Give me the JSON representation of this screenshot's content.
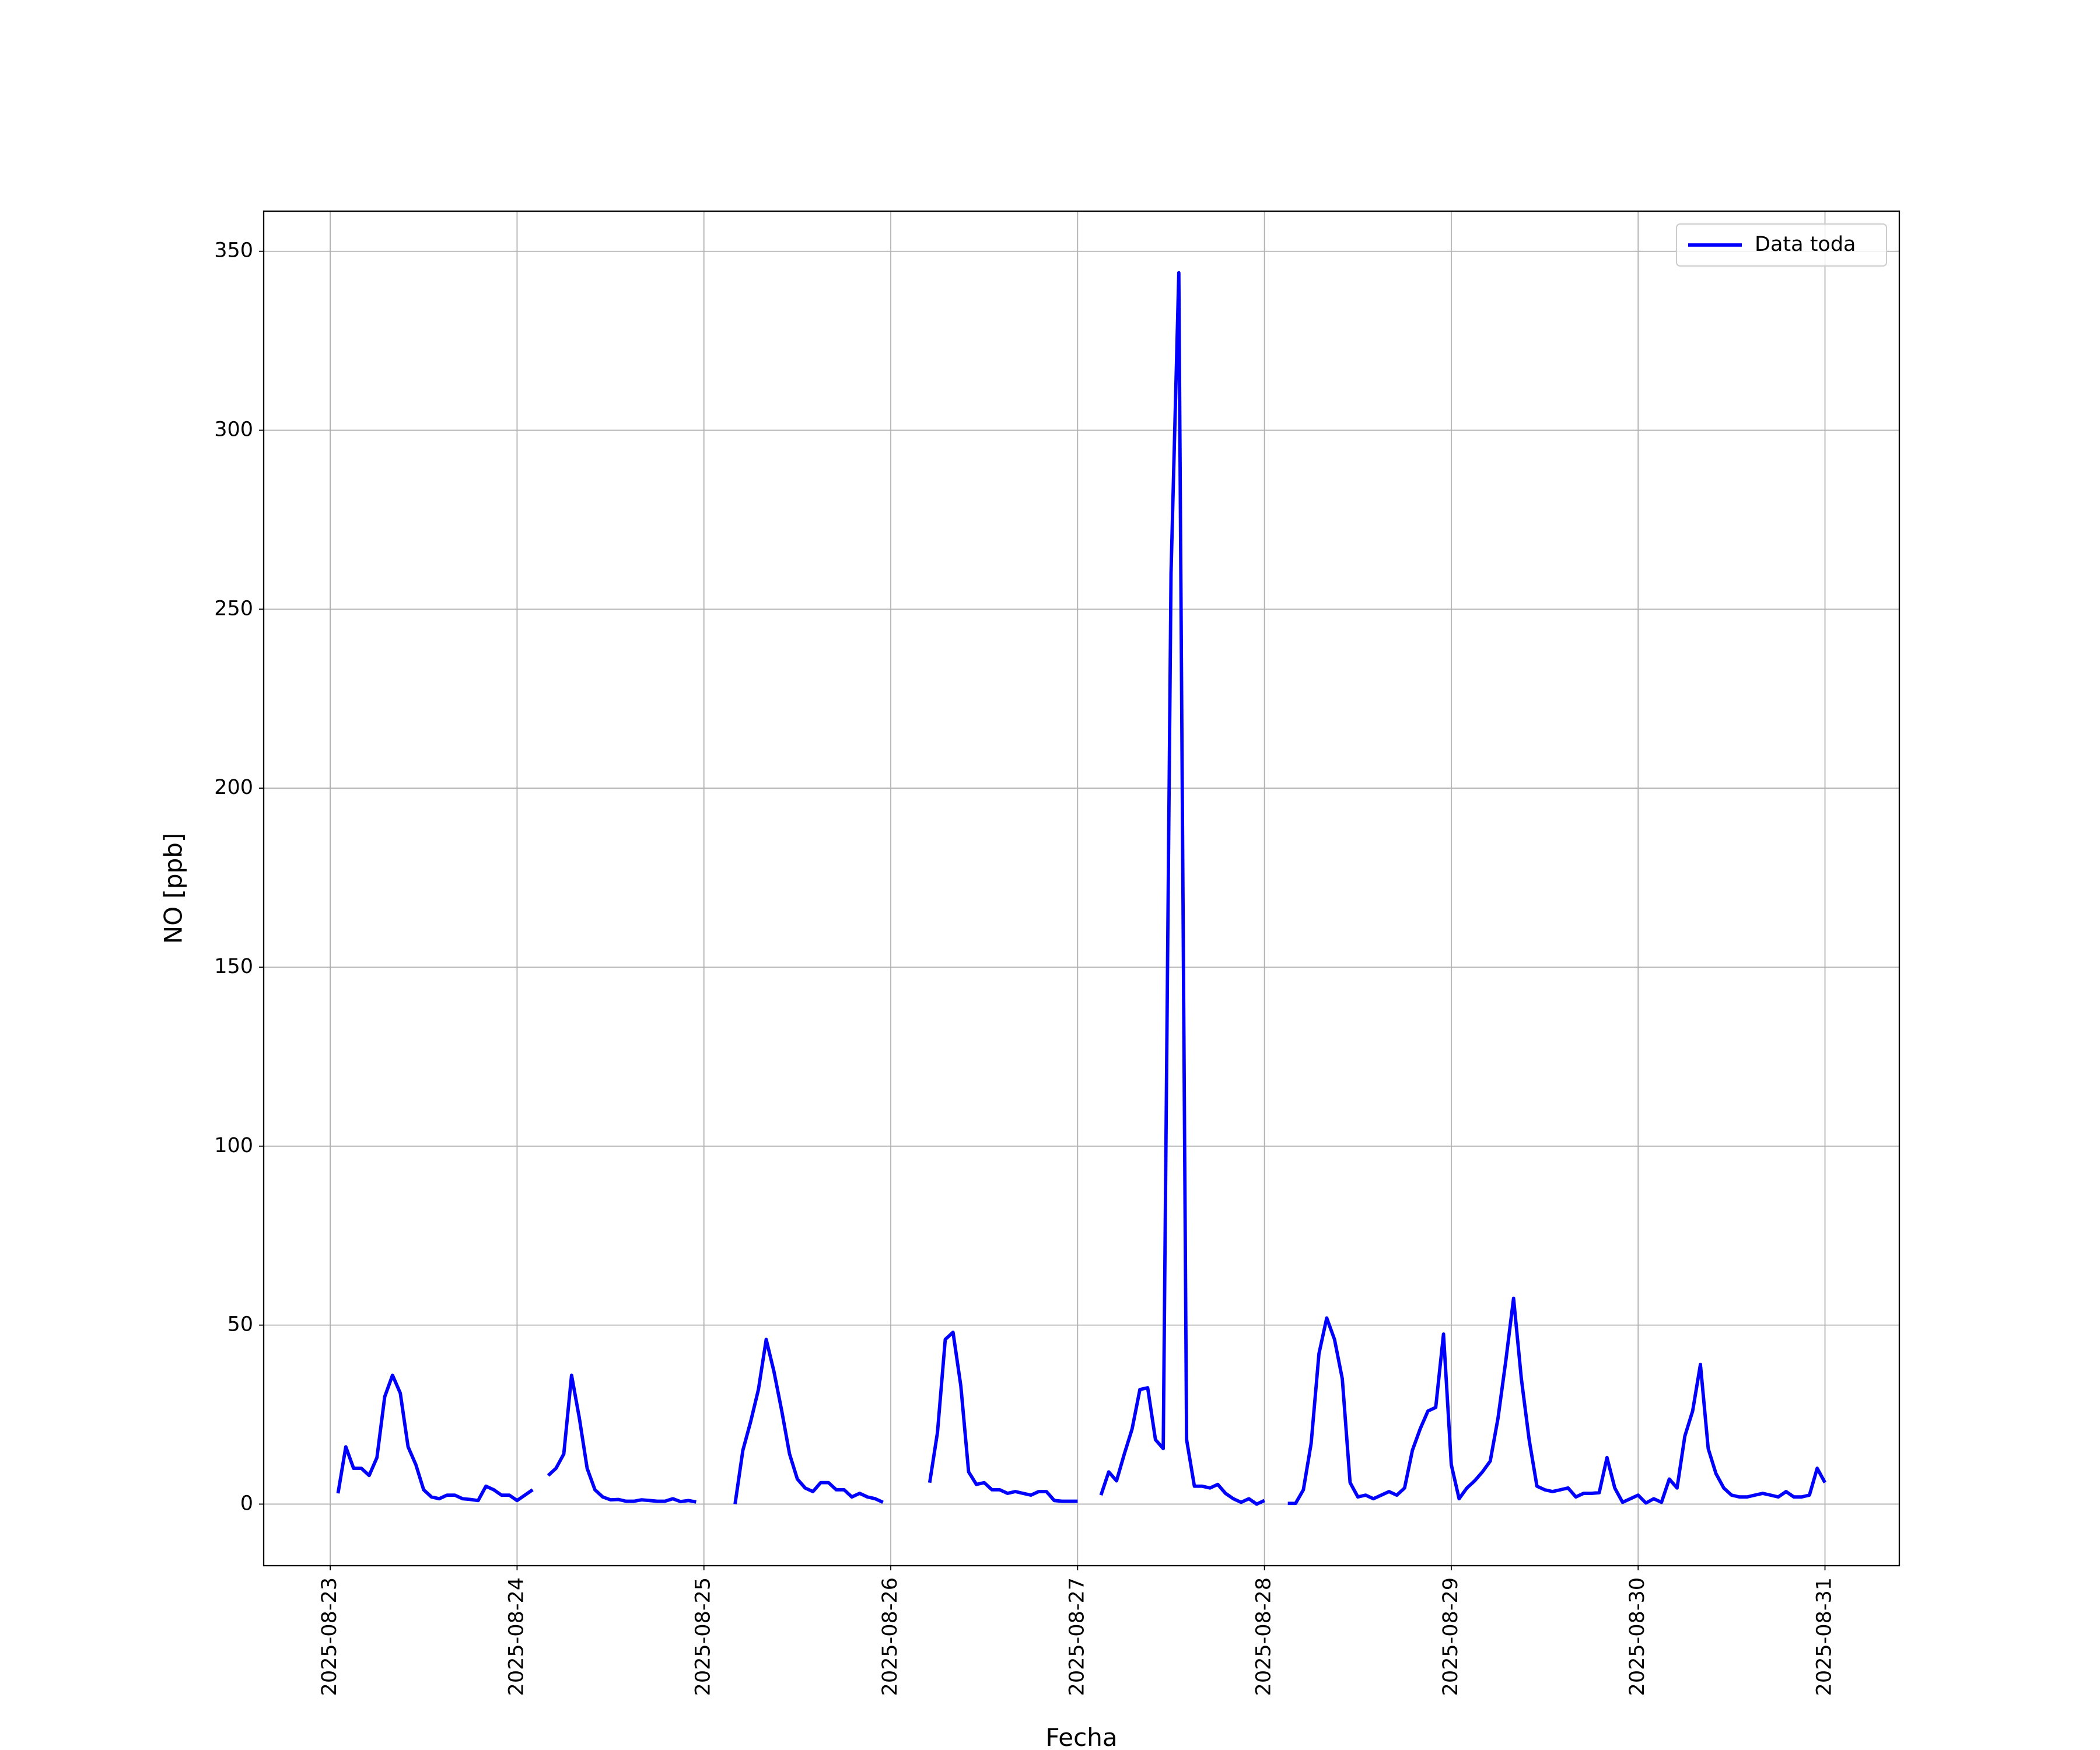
{
  "chart_data": {
    "type": "line",
    "xlabel": "Fecha",
    "ylabel": "NO [ppb]",
    "x": [
      "2025-08-23 01:00",
      "2025-08-23 02:00",
      "2025-08-23 03:00",
      "2025-08-23 04:00",
      "2025-08-23 05:00",
      "2025-08-23 06:00",
      "2025-08-23 07:00",
      "2025-08-23 08:00",
      "2025-08-23 09:00",
      "2025-08-23 10:00",
      "2025-08-23 11:00",
      "2025-08-23 12:00",
      "2025-08-23 13:00",
      "2025-08-23 14:00",
      "2025-08-23 15:00",
      "2025-08-23 16:00",
      "2025-08-23 17:00",
      "2025-08-23 18:00",
      "2025-08-23 19:00",
      "2025-08-23 20:00",
      "2025-08-23 21:00",
      "2025-08-23 22:00",
      "2025-08-23 23:00",
      "2025-08-24 00:00",
      "2025-08-24 01:00",
      "2025-08-24 02:00",
      "2025-08-24 03:00",
      "2025-08-24 04:00",
      "2025-08-24 05:00",
      "2025-08-24 06:00",
      "2025-08-24 07:00",
      "2025-08-24 08:00",
      "2025-08-24 09:00",
      "2025-08-24 10:00",
      "2025-08-24 11:00",
      "2025-08-24 12:00",
      "2025-08-24 13:00",
      "2025-08-24 14:00",
      "2025-08-24 15:00",
      "2025-08-24 16:00",
      "2025-08-24 17:00",
      "2025-08-24 18:00",
      "2025-08-24 19:00",
      "2025-08-24 20:00",
      "2025-08-24 21:00",
      "2025-08-24 22:00",
      "2025-08-24 23:00",
      "2025-08-25 00:00",
      "2025-08-25 01:00",
      "2025-08-25 02:00",
      "2025-08-25 03:00",
      "2025-08-25 04:00",
      "2025-08-25 05:00",
      "2025-08-25 06:00",
      "2025-08-25 07:00",
      "2025-08-25 08:00",
      "2025-08-25 09:00",
      "2025-08-25 10:00",
      "2025-08-25 11:00",
      "2025-08-25 12:00",
      "2025-08-25 13:00",
      "2025-08-25 14:00",
      "2025-08-25 15:00",
      "2025-08-25 16:00",
      "2025-08-25 17:00",
      "2025-08-25 18:00",
      "2025-08-25 19:00",
      "2025-08-25 20:00",
      "2025-08-25 21:00",
      "2025-08-25 22:00",
      "2025-08-25 23:00",
      "2025-08-26 00:00",
      "2025-08-26 01:00",
      "2025-08-26 02:00",
      "2025-08-26 03:00",
      "2025-08-26 04:00",
      "2025-08-26 05:00",
      "2025-08-26 06:00",
      "2025-08-26 07:00",
      "2025-08-26 08:00",
      "2025-08-26 09:00",
      "2025-08-26 10:00",
      "2025-08-26 11:00",
      "2025-08-26 12:00",
      "2025-08-26 13:00",
      "2025-08-26 14:00",
      "2025-08-26 15:00",
      "2025-08-26 16:00",
      "2025-08-26 17:00",
      "2025-08-26 18:00",
      "2025-08-26 19:00",
      "2025-08-26 20:00",
      "2025-08-26 21:00",
      "2025-08-26 22:00",
      "2025-08-26 23:00",
      "2025-08-27 00:00",
      "2025-08-27 01:00",
      "2025-08-27 02:00",
      "2025-08-27 03:00",
      "2025-08-27 04:00",
      "2025-08-27 05:00",
      "2025-08-27 06:00",
      "2025-08-27 07:00",
      "2025-08-27 08:00",
      "2025-08-27 09:00",
      "2025-08-27 10:00",
      "2025-08-27 11:00",
      "2025-08-27 12:00",
      "2025-08-27 13:00",
      "2025-08-27 14:00",
      "2025-08-27 15:00",
      "2025-08-27 16:00",
      "2025-08-27 17:00",
      "2025-08-27 18:00",
      "2025-08-27 19:00",
      "2025-08-27 20:00",
      "2025-08-27 21:00",
      "2025-08-27 22:00",
      "2025-08-27 23:00",
      "2025-08-28 00:00",
      "2025-08-28 01:00",
      "2025-08-28 02:00",
      "2025-08-28 03:00",
      "2025-08-28 04:00",
      "2025-08-28 05:00",
      "2025-08-28 06:00",
      "2025-08-28 07:00",
      "2025-08-28 08:00",
      "2025-08-28 09:00",
      "2025-08-28 10:00",
      "2025-08-28 11:00",
      "2025-08-28 12:00",
      "2025-08-28 13:00",
      "2025-08-28 14:00",
      "2025-08-28 15:00",
      "2025-08-28 16:00",
      "2025-08-28 17:00",
      "2025-08-28 18:00",
      "2025-08-28 19:00",
      "2025-08-28 20:00",
      "2025-08-28 21:00",
      "2025-08-28 22:00",
      "2025-08-28 23:00",
      "2025-08-29 00:00",
      "2025-08-29 01:00",
      "2025-08-29 02:00",
      "2025-08-29 03:00",
      "2025-08-29 04:00",
      "2025-08-29 05:00",
      "2025-08-29 06:00",
      "2025-08-29 07:00",
      "2025-08-29 08:00",
      "2025-08-29 09:00",
      "2025-08-29 10:00",
      "2025-08-29 11:00",
      "2025-08-29 12:00",
      "2025-08-29 13:00",
      "2025-08-29 14:00",
      "2025-08-29 15:00",
      "2025-08-29 16:00",
      "2025-08-29 17:00",
      "2025-08-29 18:00",
      "2025-08-29 19:00",
      "2025-08-29 20:00",
      "2025-08-29 21:00",
      "2025-08-29 22:00",
      "2025-08-29 23:00",
      "2025-08-30 00:00",
      "2025-08-30 01:00",
      "2025-08-30 02:00",
      "2025-08-30 03:00",
      "2025-08-30 04:00",
      "2025-08-30 05:00",
      "2025-08-30 06:00",
      "2025-08-30 07:00",
      "2025-08-30 08:00",
      "2025-08-30 09:00",
      "2025-08-30 10:00",
      "2025-08-30 11:00",
      "2025-08-30 12:00",
      "2025-08-30 13:00",
      "2025-08-30 14:00",
      "2025-08-30 15:00",
      "2025-08-30 16:00",
      "2025-08-30 17:00",
      "2025-08-30 18:00",
      "2025-08-30 19:00",
      "2025-08-30 20:00",
      "2025-08-30 21:00",
      "2025-08-30 22:00",
      "2025-08-30 23:00",
      "2025-08-31 00:00"
    ],
    "series": [
      {
        "name": "Data toda",
        "color": "#0000ff",
        "values": [
          3,
          16,
          10,
          10,
          8,
          13,
          30,
          36,
          31,
          16,
          11,
          4,
          2,
          1.5,
          2.5,
          2.5,
          1.5,
          1.3,
          1,
          5,
          4,
          2.5,
          2.5,
          1,
          2.5,
          4,
          null,
          8,
          10,
          14,
          36,
          24,
          10,
          4,
          2,
          1.2,
          1.3,
          0.8,
          0.8,
          1.2,
          1,
          0.8,
          0.8,
          1.5,
          0.7,
          1,
          0.6,
          null,
          null,
          null,
          null,
          0,
          15,
          23,
          32,
          46,
          37,
          26,
          14,
          7,
          4.5,
          3.5,
          6,
          6,
          4,
          4,
          2,
          3,
          2,
          1.5,
          0.5,
          null,
          null,
          null,
          null,
          null,
          6,
          20,
          46,
          48,
          33,
          9,
          5.5,
          6,
          4,
          4,
          3,
          3.5,
          3,
          2.5,
          3.5,
          3.5,
          1,
          0.8,
          0.8,
          0.8,
          null,
          null,
          2.5,
          9,
          6.5,
          14,
          21,
          32,
          32.5,
          18,
          15.5,
          260,
          344,
          18,
          5,
          5,
          4.5,
          5.5,
          3,
          1.5,
          0.5,
          1.5,
          0,
          1,
          null,
          null,
          0.2,
          0.2,
          4,
          17,
          42,
          52,
          46,
          35,
          6,
          2,
          2.5,
          1.5,
          2.5,
          3.5,
          2.5,
          4.5,
          15,
          21,
          26,
          27,
          47.5,
          11,
          1.5,
          4.5,
          6.5,
          9,
          12,
          24,
          40,
          57.5,
          35,
          18,
          5,
          4,
          3.5,
          4,
          4.5,
          2,
          3,
          3,
          3.2,
          13,
          4.5,
          0.5,
          1.5,
          2.5,
          0.3,
          1.5,
          0.5,
          7,
          4.5,
          19,
          26,
          39,
          15.5,
          8.5,
          4.5,
          2.5,
          2,
          2,
          2.5,
          3,
          2.5,
          2,
          3.5,
          2,
          2,
          2.5,
          10,
          6
        ]
      }
    ],
    "xlim": [
      "2025-08-22 15:27",
      "2025-08-31 09:33"
    ],
    "xticks": [
      "2025-08-23",
      "2025-08-24",
      "2025-08-25",
      "2025-08-26",
      "2025-08-27",
      "2025-08-28",
      "2025-08-29",
      "2025-08-30",
      "2025-08-31"
    ],
    "ylim": [
      -17.2,
      361.2
    ],
    "yticks": [
      0,
      50,
      100,
      150,
      200,
      250,
      300,
      350
    ],
    "grid": true,
    "legend": "upper right"
  }
}
